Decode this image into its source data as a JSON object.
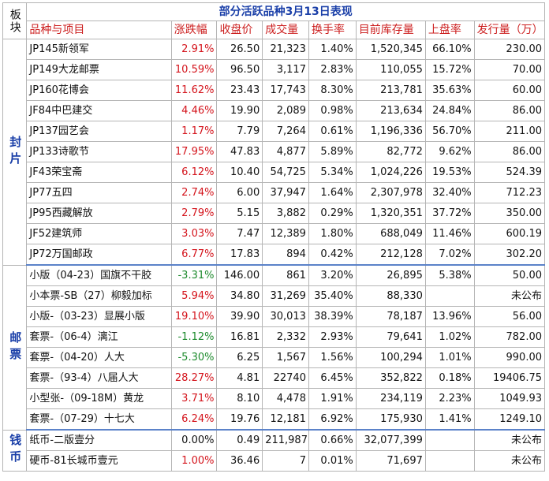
{
  "table": {
    "title": "部分活跃品种3月13日表现",
    "corner": "板块",
    "headers": [
      "品种与项目",
      "涨跌幅",
      "收盘价",
      "成交量",
      "换手率",
      "目前库存量",
      "上盘率",
      "发行量（万）"
    ],
    "sections": [
      {
        "name": "封片",
        "rows": [
          {
            "name": "JP145新领军",
            "change": "2.91%",
            "dir": "up",
            "close": "26.50",
            "volume": "21,323",
            "turnover": "1.40%",
            "stock": "1,520,345",
            "listing": "66.10%",
            "issue": "230.00"
          },
          {
            "name": "JP149大龙邮票",
            "change": "10.59%",
            "dir": "up",
            "close": "96.50",
            "volume": "3,117",
            "turnover": "2.83%",
            "stock": "110,055",
            "listing": "15.72%",
            "issue": "70.00"
          },
          {
            "name": "JP160花博会",
            "change": "11.62%",
            "dir": "up",
            "close": "23.43",
            "volume": "17,743",
            "turnover": "8.30%",
            "stock": "213,781",
            "listing": "35.63%",
            "issue": "60.00"
          },
          {
            "name": "JF84中巴建交",
            "change": "4.46%",
            "dir": "up",
            "close": "19.90",
            "volume": "2,089",
            "turnover": "0.98%",
            "stock": "213,634",
            "listing": "24.84%",
            "issue": "86.00"
          },
          {
            "name": "JP137园艺会",
            "change": "1.17%",
            "dir": "up",
            "close": "7.79",
            "volume": "7,264",
            "turnover": "0.61%",
            "stock": "1,196,336",
            "listing": "56.70%",
            "issue": "211.00"
          },
          {
            "name": "JP133诗歌节",
            "change": "17.95%",
            "dir": "up",
            "close": "47.83",
            "volume": "4,877",
            "turnover": "5.89%",
            "stock": "82,772",
            "listing": "9.62%",
            "issue": "86.00"
          },
          {
            "name": "JF43荣宝斋",
            "change": "6.12%",
            "dir": "up",
            "close": "10.40",
            "volume": "54,725",
            "turnover": "5.34%",
            "stock": "1,024,226",
            "listing": "19.53%",
            "issue": "524.39"
          },
          {
            "name": "JP77五四",
            "change": "2.74%",
            "dir": "up",
            "close": "6.00",
            "volume": "37,947",
            "turnover": "1.64%",
            "stock": "2,307,978",
            "listing": "32.40%",
            "issue": "712.23"
          },
          {
            "name": "JP95西藏解放",
            "change": "2.79%",
            "dir": "up",
            "close": "5.15",
            "volume": "3,882",
            "turnover": "0.29%",
            "stock": "1,320,351",
            "listing": "37.72%",
            "issue": "350.00"
          },
          {
            "name": "JF52建筑师",
            "change": "3.03%",
            "dir": "up",
            "close": "7.47",
            "volume": "12,389",
            "turnover": "1.80%",
            "stock": "688,049",
            "listing": "11.46%",
            "issue": "600.19"
          },
          {
            "name": "JP72万国邮政",
            "change": "6.77%",
            "dir": "up",
            "close": "17.83",
            "volume": "894",
            "turnover": "0.42%",
            "stock": "212,128",
            "listing": "7.02%",
            "issue": "302.20"
          }
        ]
      },
      {
        "name": "邮票",
        "rows": [
          {
            "name": "小版（04-23）国旗不干胶",
            "change": "-3.31%",
            "dir": "down",
            "close": "146.00",
            "volume": "861",
            "turnover": "3.20%",
            "stock": "26,895",
            "listing": "5.38%",
            "issue": "50.00"
          },
          {
            "name": "小本票-SB（27）柳毅加标",
            "change": "5.94%",
            "dir": "up",
            "close": "34.80",
            "volume": "31,269",
            "turnover": "35.40%",
            "stock": "88,330",
            "listing": "",
            "issue": "未公布"
          },
          {
            "name": "小版-（03-23）显展小版",
            "change": "19.10%",
            "dir": "up",
            "close": "39.90",
            "volume": "30,013",
            "turnover": "38.39%",
            "stock": "78,187",
            "listing": "13.96%",
            "issue": "56.00"
          },
          {
            "name": "套票-（06-4）漓江",
            "change": "-1.12%",
            "dir": "down",
            "close": "16.81",
            "volume": "2,332",
            "turnover": "2.93%",
            "stock": "79,641",
            "listing": "1.02%",
            "issue": "782.00"
          },
          {
            "name": "套票-（04-20）人大",
            "change": "-5.30%",
            "dir": "down",
            "close": "6.25",
            "volume": "1,567",
            "turnover": "1.56%",
            "stock": "100,294",
            "listing": "1.01%",
            "issue": "990.00"
          },
          {
            "name": "套票-（93-4）八届人大",
            "change": "28.27%",
            "dir": "up",
            "close": "4.81",
            "volume": "22740",
            "turnover": "6.45%",
            "stock": "352,822",
            "listing": "0.18%",
            "issue": "19406.75"
          },
          {
            "name": "小型张-（09-18M）黄龙",
            "change": "3.71%",
            "dir": "up",
            "close": "8.10",
            "volume": "4,478",
            "turnover": "1.91%",
            "stock": "234,119",
            "listing": "2.23%",
            "issue": "1049.93"
          },
          {
            "name": "套票-（07-29）十七大",
            "change": "6.24%",
            "dir": "up",
            "close": "19.76",
            "volume": "12,181",
            "turnover": "6.92%",
            "stock": "175,930",
            "listing": "1.41%",
            "issue": "1249.10"
          }
        ]
      },
      {
        "name": "钱币",
        "rows": [
          {
            "name": "纸币-二版壹分",
            "change": "0.00%",
            "dir": "flat",
            "close": "0.49",
            "volume": "211,987",
            "turnover": "0.66%",
            "stock": "32,077,399",
            "listing": "",
            "issue": "未公布"
          },
          {
            "name": "硬币-81长城币壹元",
            "change": "1.00%",
            "dir": "up",
            "close": "36.46",
            "volume": "7",
            "turnover": "0.01%",
            "stock": "71,697",
            "listing": "",
            "issue": "未公布"
          }
        ]
      }
    ]
  }
}
